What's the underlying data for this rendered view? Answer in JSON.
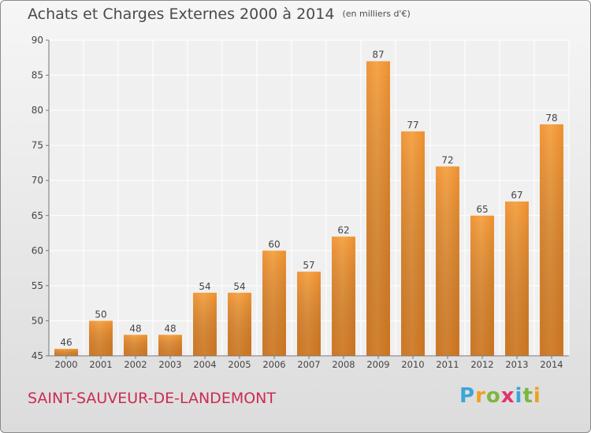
{
  "header": {
    "title": "Achats et Charges Externes 2000 à 2014",
    "unit": "(en milliers d'€)"
  },
  "footer": {
    "commune": "SAINT-SAUVEUR-DE-LANDEMONT",
    "brand": "Proxiti"
  },
  "colors": {
    "bar_light": "#f6a54a",
    "bar_dark": "#cc6a12",
    "commune_text": "#cc2b52"
  },
  "chart_data": {
    "type": "bar",
    "categories": [
      "2000",
      "2001",
      "2002",
      "2003",
      "2004",
      "2005",
      "2006",
      "2007",
      "2008",
      "2009",
      "2010",
      "2011",
      "2012",
      "2013",
      "2014"
    ],
    "values": [
      46,
      50,
      48,
      48,
      54,
      54,
      60,
      57,
      62,
      87,
      77,
      72,
      65,
      67,
      78
    ],
    "title": "Achats et Charges Externes 2000 à 2014",
    "xlabel": "",
    "ylabel": "",
    "ylim": [
      45,
      90
    ],
    "yticks": [
      45,
      50,
      55,
      60,
      65,
      70,
      75,
      80,
      85,
      90
    ],
    "grid": true,
    "data_labels": true
  }
}
